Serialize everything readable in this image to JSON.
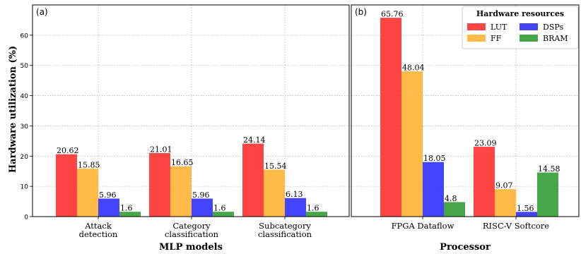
{
  "ylabel": "Hardware utilization (%)",
  "legend": {
    "title": "Hardware resources",
    "items": [
      {
        "name": "LUT",
        "color": "#ff2a2a"
      },
      {
        "name": "FF",
        "color": "#ffb02e"
      },
      {
        "name": "DSPs",
        "color": "#2a2aff"
      },
      {
        "name": "BRAM",
        "color": "#2e9a2e"
      }
    ]
  },
  "chart_data": [
    {
      "type": "bar",
      "panel_label": "(a)",
      "xlabel": "MLP models",
      "ylabel": "Hardware utilization (%)",
      "categories": [
        [
          "Attack",
          "detection"
        ],
        [
          "Category",
          "classification"
        ],
        [
          "Subcategory",
          "classification"
        ]
      ],
      "series": [
        {
          "name": "LUT",
          "color": "#ff2a2a",
          "values": [
            20.62,
            21.01,
            24.14
          ]
        },
        {
          "name": "FF",
          "color": "#ffb02e",
          "values": [
            15.85,
            16.65,
            15.54
          ]
        },
        {
          "name": "DSPs",
          "color": "#2a2aff",
          "values": [
            5.96,
            5.96,
            6.13
          ]
        },
        {
          "name": "BRAM",
          "color": "#2e9a2e",
          "values": [
            1.6,
            1.6,
            1.6
          ]
        }
      ],
      "ylim": [
        0,
        70
      ],
      "yticks": [
        0,
        10,
        20,
        30,
        40,
        50,
        60
      ],
      "grid": true
    },
    {
      "type": "bar",
      "panel_label": "(b)",
      "xlabel": "Processor",
      "categories": [
        [
          "FPGA Dataflow"
        ],
        [
          "RISC-V Softcore"
        ]
      ],
      "series": [
        {
          "name": "LUT",
          "color": "#ff2a2a",
          "values": [
            65.76,
            23.09
          ]
        },
        {
          "name": "FF",
          "color": "#ffb02e",
          "values": [
            48.04,
            9.07
          ]
        },
        {
          "name": "DSPs",
          "color": "#2a2aff",
          "values": [
            18.05,
            1.56
          ]
        },
        {
          "name": "BRAM",
          "color": "#2e9a2e",
          "values": [
            4.8,
            14.58
          ]
        }
      ],
      "ylim": [
        0,
        70
      ],
      "grid": true,
      "legend_position": "top-right"
    }
  ]
}
